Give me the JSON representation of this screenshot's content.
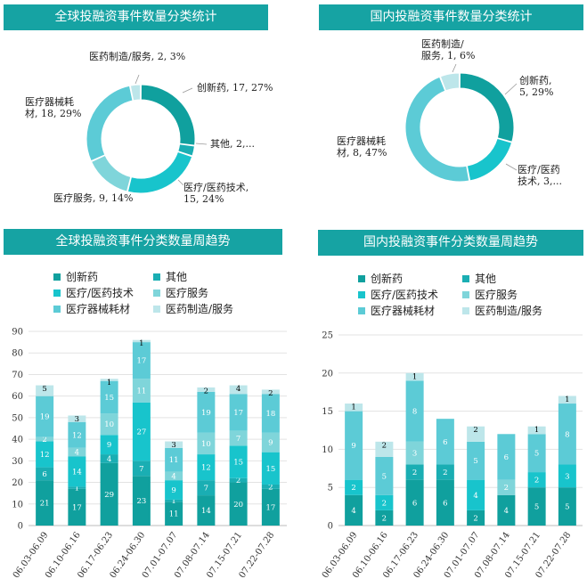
{
  "colors": {
    "title_bg": "#16a3a3",
    "series": [
      "#10a09e",
      "#1aaeb3",
      "#18c4cc",
      "#7fd5da",
      "#5ccbd6",
      "#bde6ea"
    ]
  },
  "chart_data": [
    {
      "type": "pie",
      "title": "全球投融资事件数量分类统计",
      "slices": [
        {
          "name": "创新药",
          "value": 17,
          "percent": 27,
          "label": "创新药, 17, 27%"
        },
        {
          "name": "其他",
          "value": 2,
          "percent": 3,
          "label": "其他, 2,..."
        },
        {
          "name": "医疗/医药技术",
          "value": 15,
          "percent": 24,
          "label": [
            "医疗/医药技术,",
            "15, 24%"
          ]
        },
        {
          "name": "医疗服务",
          "value": 9,
          "percent": 14,
          "label": "医疗服务, 9, 14%"
        },
        {
          "name": "医疗器械耗材",
          "value": 18,
          "percent": 29,
          "label": [
            "医疗器械耗",
            "材, 18, 29%"
          ]
        },
        {
          "name": "医药制造/服务",
          "value": 2,
          "percent": 3,
          "label": "医药制造/服务, 2, 3%"
        }
      ]
    },
    {
      "type": "pie",
      "title": "国内投融资事件数量分类统计",
      "slices": [
        {
          "name": "创新药",
          "value": 5,
          "percent": 29,
          "label": [
            "创新药,",
            "5, 29%"
          ]
        },
        {
          "name": "医疗/医药技术",
          "value": 3,
          "percent": 18,
          "label": [
            "医疗/医药",
            "技术, 3,..."
          ]
        },
        {
          "name": "医疗器械耗材",
          "value": 8,
          "percent": 47,
          "label": [
            "医疗器械耗",
            "材, 8, 47%"
          ]
        },
        {
          "name": "医药制造/服务",
          "value": 1,
          "percent": 6,
          "label": [
            "医药制造/",
            "服务, 1, 6%"
          ]
        }
      ]
    },
    {
      "type": "bar",
      "stacked": true,
      "title": "全球投融资事件分类数量周趋势",
      "categories": [
        "06.03-06.09",
        "06.10-06.16",
        "06.17-06.23",
        "06.24-06.30",
        "07.01-07.07",
        "07.08-07.14",
        "07.15-07.21",
        "07.22-07.28"
      ],
      "ylim": [
        0,
        90
      ],
      "yticks": [
        0,
        10,
        20,
        30,
        40,
        50,
        60,
        70,
        80,
        90
      ],
      "legend": [
        "创新药",
        "其他",
        "医疗/医药技术",
        "医疗服务",
        "医疗器械耗材",
        "医药制造/服务"
      ],
      "series": [
        {
          "name": "创新药",
          "values": [
            21,
            17,
            29,
            23,
            11,
            14,
            20,
            17
          ]
        },
        {
          "name": "其他",
          "values": [
            6,
            1,
            4,
            7,
            1,
            7,
            2,
            2
          ]
        },
        {
          "name": "医疗/医药技术",
          "values": [
            12,
            14,
            9,
            27,
            9,
            12,
            15,
            15
          ]
        },
        {
          "name": "医疗服务",
          "values": [
            2,
            4,
            10,
            11,
            4,
            10,
            7,
            9
          ]
        },
        {
          "name": "医疗器械耗材",
          "values": [
            19,
            12,
            15,
            17,
            11,
            19,
            17,
            18
          ]
        },
        {
          "name": "医药制造/服务",
          "values": [
            5,
            3,
            1,
            1,
            3,
            2,
            4,
            2
          ]
        }
      ]
    },
    {
      "type": "bar",
      "stacked": true,
      "title": "国内投融资事件分类数量周趋势",
      "categories": [
        "06.03-06.09",
        "06.10-06.16",
        "06.17-06.23",
        "06.24-06.30",
        "07.01-07.07",
        "07.08-07.14",
        "07.15-07.21",
        "07.22-07.28"
      ],
      "ylim": [
        0,
        25
      ],
      "yticks": [
        0,
        5,
        10,
        15,
        20,
        25
      ],
      "legend": [
        "创新药",
        "其他",
        "医疗/医药技术",
        "医疗服务",
        "医疗器械耗材",
        "医药制造/服务"
      ],
      "series": [
        {
          "name": "创新药",
          "values": [
            4,
            2,
            6,
            6,
            2,
            4,
            5,
            5
          ]
        },
        {
          "name": "其他",
          "values": [
            0,
            0,
            2,
            2,
            0,
            0,
            0,
            0
          ]
        },
        {
          "name": "医疗/医药技术",
          "values": [
            2,
            2,
            0,
            0,
            4,
            0,
            2,
            3
          ]
        },
        {
          "name": "医疗服务",
          "values": [
            0,
            0,
            3,
            0,
            0,
            2,
            0,
            0
          ]
        },
        {
          "name": "医疗器械耗材",
          "values": [
            9,
            5,
            8,
            6,
            5,
            6,
            5,
            8
          ]
        },
        {
          "name": "医药制造/服务",
          "values": [
            1,
            2,
            1,
            0,
            2,
            0,
            1,
            1
          ]
        }
      ]
    }
  ]
}
